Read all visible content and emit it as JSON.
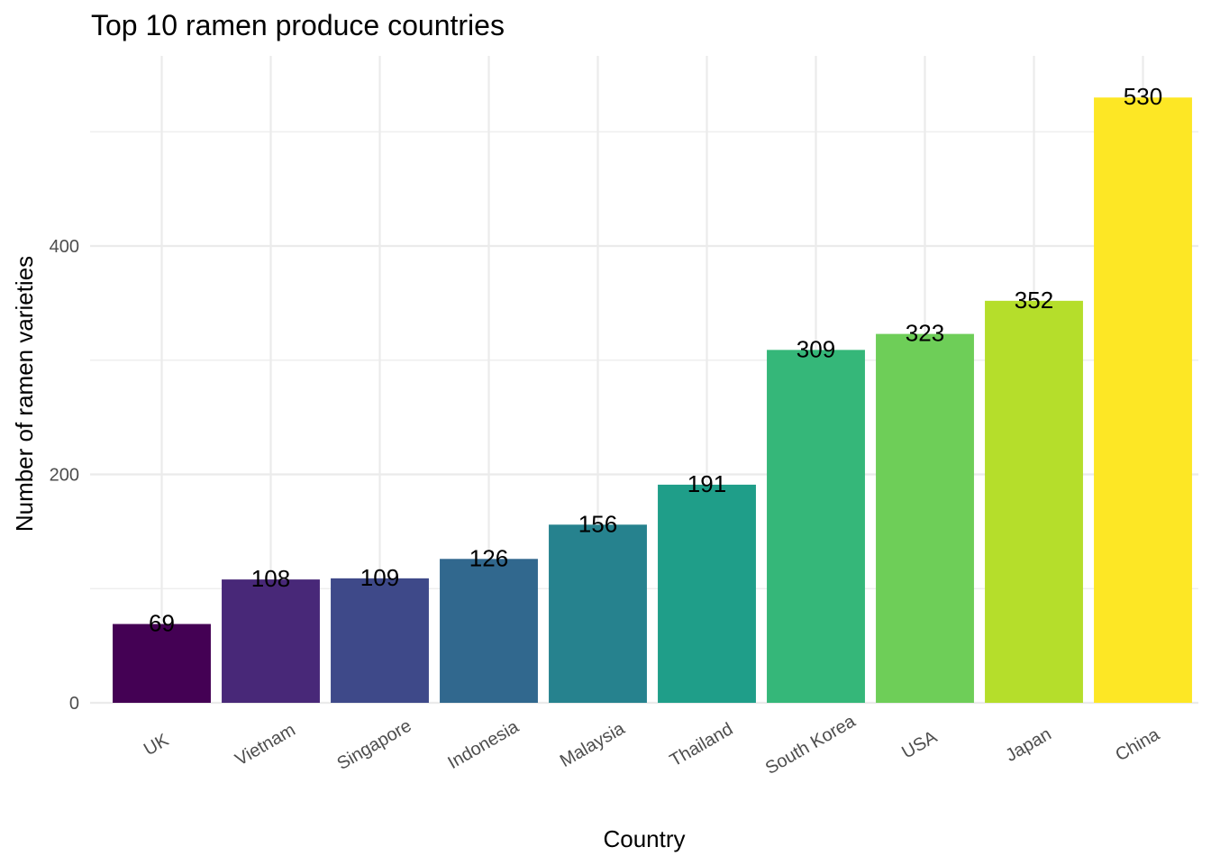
{
  "chart_data": {
    "type": "bar",
    "title": "Top 10 ramen produce countries",
    "xlabel": "Country",
    "ylabel": "Number of ramen varieties",
    "categories": [
      "UK",
      "Vietnam",
      "Singapore",
      "Indonesia",
      "Malaysia",
      "Thailand",
      "South Korea",
      "USA",
      "Japan",
      "China"
    ],
    "values": [
      69,
      108,
      109,
      126,
      156,
      191,
      309,
      323,
      352,
      530
    ],
    "colors": [
      "#440154",
      "#482878",
      "#3e4989",
      "#31688e",
      "#26828e",
      "#1f9e89",
      "#35b779",
      "#6ece58",
      "#b5de2b",
      "#fde725"
    ],
    "y_ticks": [
      0,
      200,
      400
    ],
    "ylim": [
      0,
      556
    ],
    "grid": true,
    "legend": "none",
    "x_tick_rotation_deg": -30
  }
}
